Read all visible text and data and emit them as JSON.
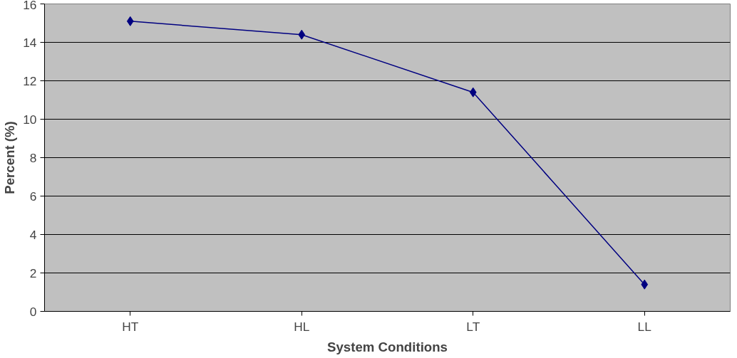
{
  "chart_data": {
    "type": "line",
    "xlabel": "System Conditions",
    "ylabel": "Percent (%)",
    "categories": [
      "HT",
      "HL",
      "LT",
      "LL"
    ],
    "series": [
      {
        "color": "#000080",
        "values": [
          15.1,
          14.4,
          11.4,
          1.4
        ]
      }
    ],
    "ylim": [
      0,
      16
    ],
    "yticks": [
      0,
      2,
      4,
      6,
      8,
      10,
      12,
      14,
      16
    ],
    "grid": "y",
    "marker": "diamond",
    "line_style": "solid"
  }
}
